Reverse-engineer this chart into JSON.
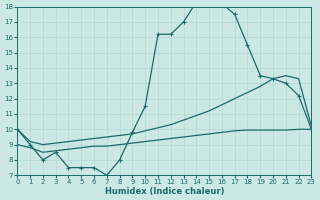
{
  "background_color": "#cce8e4",
  "grid_color": "#b0d8d4",
  "line_color": "#1a6b6b",
  "xlabel": "Humidex (Indice chaleur)",
  "xlim": [
    0,
    23
  ],
  "ylim": [
    7,
    18
  ],
  "xticks": [
    0,
    1,
    2,
    3,
    4,
    5,
    6,
    7,
    8,
    9,
    10,
    11,
    12,
    13,
    14,
    15,
    16,
    17,
    18,
    19,
    20,
    21,
    22,
    23
  ],
  "yticks": [
    7,
    8,
    9,
    10,
    11,
    12,
    13,
    14,
    15,
    16,
    17,
    18
  ],
  "line1_x": [
    0,
    1,
    2,
    3,
    4,
    5,
    6,
    7,
    8,
    9,
    10,
    11,
    12,
    13,
    14,
    15,
    16,
    17,
    18,
    19,
    20,
    21,
    22,
    23
  ],
  "line1_y": [
    10.0,
    9.0,
    8.0,
    8.5,
    7.5,
    7.5,
    7.5,
    7.0,
    8.0,
    9.8,
    11.5,
    16.2,
    16.2,
    17.0,
    18.3,
    18.3,
    18.2,
    17.5,
    15.5,
    13.5,
    13.3,
    13.0,
    12.2,
    10.0
  ],
  "line2_x": [
    0,
    1,
    2,
    3,
    4,
    5,
    6,
    7,
    8,
    9,
    10,
    11,
    12,
    13,
    14,
    15,
    16,
    17,
    18,
    19,
    20,
    21,
    22,
    23
  ],
  "line2_y": [
    10.0,
    9.2,
    9.0,
    9.1,
    9.2,
    9.3,
    9.4,
    9.5,
    9.6,
    9.7,
    9.9,
    10.1,
    10.3,
    10.6,
    10.9,
    11.2,
    11.6,
    12.0,
    12.4,
    12.8,
    13.3,
    13.5,
    13.3,
    10.2
  ],
  "line3_x": [
    0,
    1,
    2,
    3,
    4,
    5,
    6,
    7,
    8,
    9,
    10,
    11,
    12,
    13,
    14,
    15,
    16,
    17,
    18,
    19,
    20,
    21,
    22,
    23
  ],
  "line3_y": [
    9.0,
    8.8,
    8.5,
    8.6,
    8.7,
    8.8,
    8.9,
    8.9,
    9.0,
    9.1,
    9.2,
    9.3,
    9.4,
    9.5,
    9.6,
    9.7,
    9.8,
    9.9,
    9.95,
    9.95,
    9.95,
    9.95,
    10.0,
    10.0
  ]
}
